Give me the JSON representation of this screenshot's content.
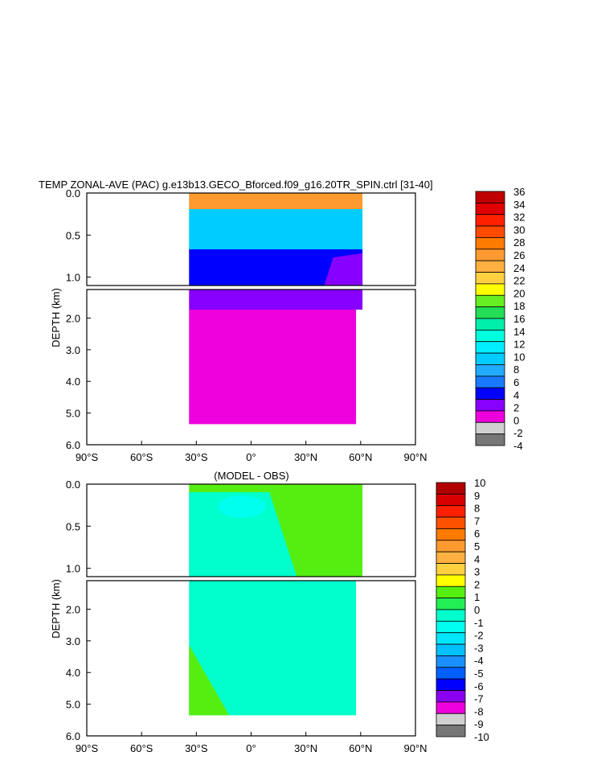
{
  "chart_data": [
    {
      "type": "heatmap",
      "title": "TEMP ZONAL-AVE (PAC) g.e13b13.GECO_Bforced.f09_g16.20TR_SPIN.ctrl [31-40]",
      "ylabel": "DEPTH (km)",
      "xlabel": "",
      "x_ticks": [
        "90°S",
        "60°S",
        "30°S",
        "0°",
        "30°N",
        "60°N",
        "90°N"
      ],
      "y_ticks_upper": [
        "0.0",
        "0.5",
        "1.0"
      ],
      "y_ticks_lower": [
        "2.0",
        "3.0",
        "4.0",
        "5.0",
        "6.0"
      ],
      "xlim": [
        -90,
        90
      ],
      "ylim_km": [
        0,
        6
      ],
      "colorbar_labels": [
        "36",
        "34",
        "32",
        "30",
        "28",
        "26",
        "24",
        "22",
        "20",
        "18",
        "16",
        "14",
        "12",
        "10",
        "8",
        "6",
        "4",
        "2",
        "0",
        "-2",
        "-4"
      ],
      "colorbar_colors": [
        "#c00000",
        "#e00000",
        "#ff2000",
        "#ff4a00",
        "#ff7a00",
        "#ff9a30",
        "#ffb040",
        "#ffd040",
        "#ffff00",
        "#66ee22",
        "#22dd55",
        "#00eeaa",
        "#00ffdd",
        "#00eeff",
        "#00ccff",
        "#22aaff",
        "#1a7aff",
        "#0000ff",
        "#8800ff",
        "#ee00dd",
        "#d0d0d0",
        "#777777"
      ],
      "colorbar_bins": 21
    },
    {
      "type": "heatmap",
      "title": "(MODEL - OBS)",
      "ylabel": "DEPTH (km)",
      "xlabel": "",
      "x_ticks": [
        "90°S",
        "60°S",
        "30°S",
        "0°",
        "30°N",
        "60°N",
        "90°N"
      ],
      "y_ticks_upper": [
        "0.0",
        "0.5",
        "1.0"
      ],
      "y_ticks_lower": [
        "2.0",
        "3.0",
        "4.0",
        "5.0",
        "6.0"
      ],
      "xlim": [
        -90,
        90
      ],
      "ylim_km": [
        0,
        6
      ],
      "colorbar_labels": [
        "10",
        "9",
        "8",
        "7",
        "6",
        "5",
        "4",
        "3",
        "2",
        "1",
        "0",
        "-1",
        "-2",
        "-3",
        "-4",
        "-5",
        "-6",
        "-7",
        "-8",
        "-9",
        "-10"
      ],
      "colorbar_colors": [
        "#b00000",
        "#d80000",
        "#ff2000",
        "#ff5000",
        "#ff7a00",
        "#ff9a30",
        "#ffb040",
        "#ffd040",
        "#ffff00",
        "#55ee11",
        "#22ee55",
        "#00ffcc",
        "#00ffee",
        "#00e6ff",
        "#00c0ff",
        "#1a90ff",
        "#0060ff",
        "#0000ff",
        "#8800ee",
        "#ee00dd",
        "#d0d0d0",
        "#777777"
      ],
      "colorbar_bins": 20
    }
  ],
  "colors": {
    "warm_surface": "#ff9a30",
    "mid": "#00ccff",
    "deep": "#0000ff",
    "abyss_upper": "#8800ff",
    "abyss": "#ee00dd",
    "diff_zero": "#00ffcc",
    "diff_pos": "#55ee11",
    "diff_neg1": "#00ffee",
    "diff_neg2": "#00e6ff"
  }
}
